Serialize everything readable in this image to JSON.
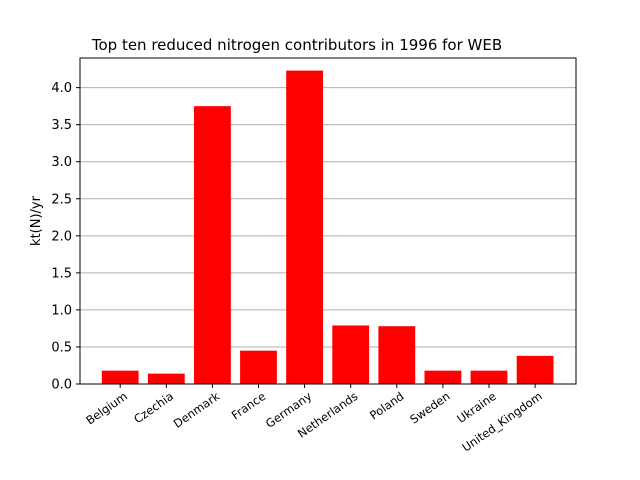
{
  "chart_data": {
    "type": "bar",
    "title": "Top ten reduced nitrogen contributors in 1996 for  WEB",
    "xlabel": "",
    "ylabel": "kt(N)/yr",
    "ylim": [
      0,
      4.4
    ],
    "yticks": [
      "0.0",
      "0.5",
      "1.0",
      "1.5",
      "2.0",
      "2.5",
      "3.0",
      "3.5",
      "4.0"
    ],
    "grid": "y",
    "bar_color": "#ff0000",
    "categories": [
      "Belgium",
      "Czechia",
      "Denmark",
      "France",
      "Germany",
      "Netherlands",
      "Poland",
      "Sweden",
      "Ukraine",
      "United_Kingdom"
    ],
    "values": [
      0.18,
      0.14,
      3.75,
      0.45,
      4.23,
      0.79,
      0.78,
      0.18,
      0.18,
      0.38
    ]
  }
}
